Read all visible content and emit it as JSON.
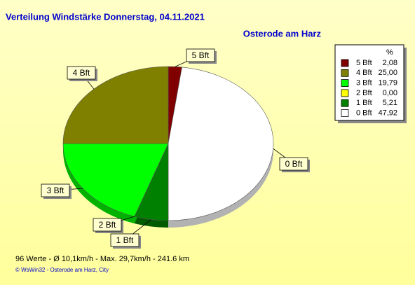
{
  "chart_data": {
    "type": "pie",
    "title": "Verteilung Windstärke  Donnerstag, 04.11.2021",
    "subtitle": "Osterode am Harz",
    "legend_header": "%",
    "categories": [
      "5 Bft",
      "4 Bft",
      "3 Bft",
      "2 Bft",
      "1 Bft",
      "0 Bft"
    ],
    "values": [
      2.08,
      25.0,
      19.79,
      0.0,
      5.21,
      47.92
    ],
    "value_labels": [
      "2,08",
      "25,00",
      "19,79",
      "0,00",
      "5,21",
      "47,92"
    ],
    "colors": [
      "#800000",
      "#808000",
      "#00ff00",
      "#ffff00",
      "#008000",
      "#ffffff"
    ],
    "legend": "top-right",
    "footer": "96 Werte   -   Ø 10,1km/h   -   Max. 29,7km/h   -   241.6 km",
    "copyright": "© WsWin32   -   Osterode am Harz, City"
  }
}
